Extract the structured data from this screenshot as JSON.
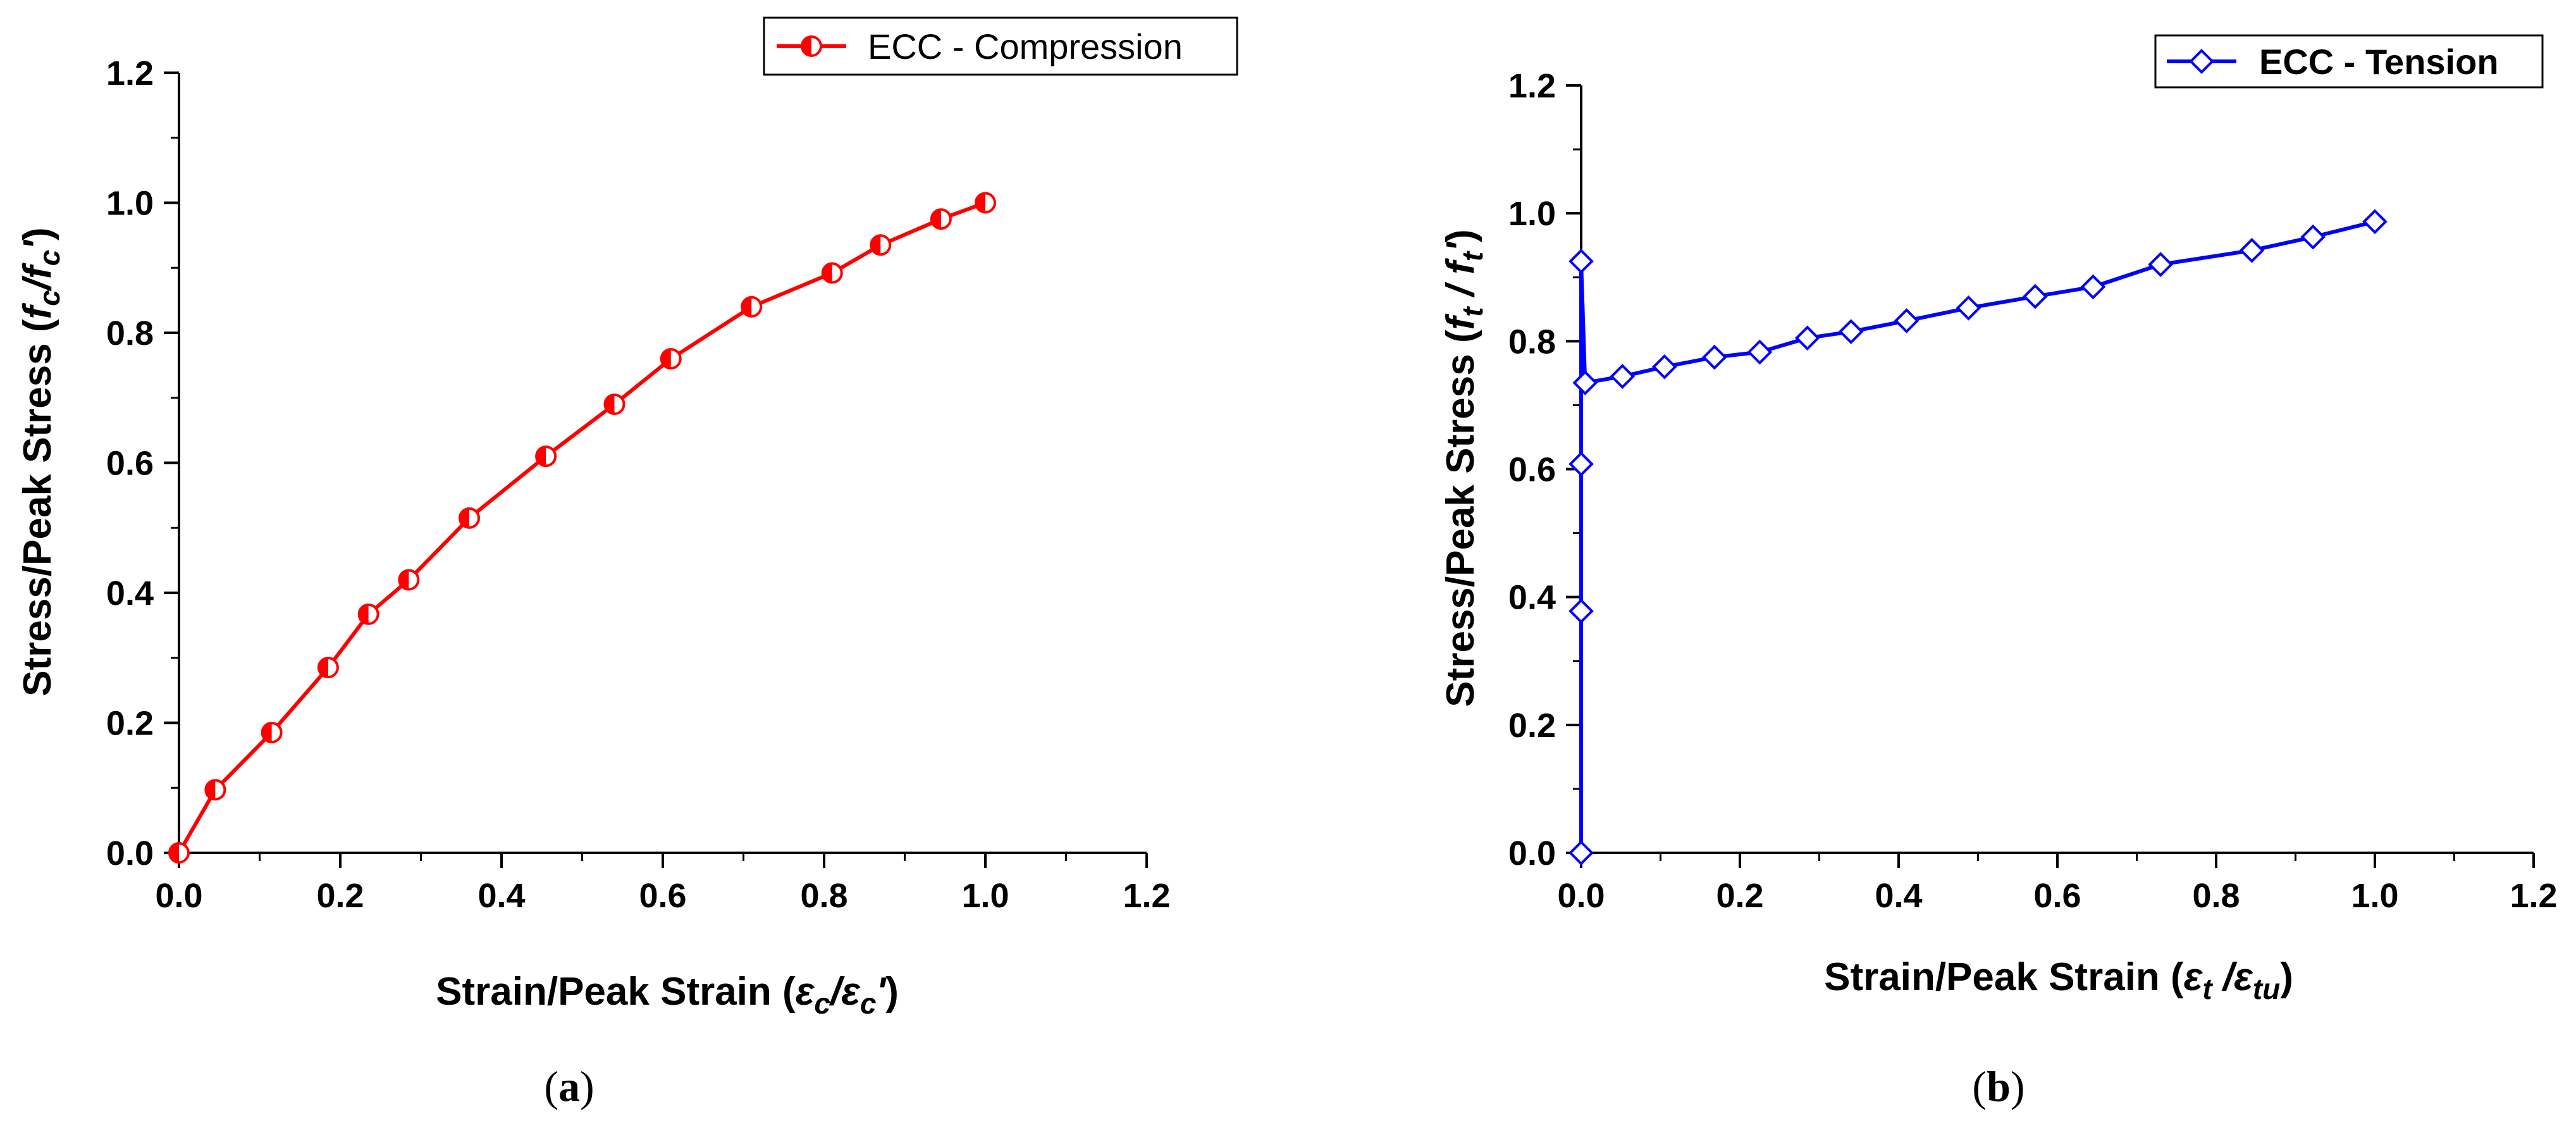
{
  "panels": [
    {
      "caption": "(a)",
      "caption_letter": "a",
      "legend_label": "ECC - Compression",
      "x_axis_label": {
        "prefix": "Strain/Peak Strain (",
        "num": "ε",
        "num_sub": "c",
        "sep": "/",
        "den": "ε",
        "den_sub": "c",
        "den_suffix": "'",
        "close": ")"
      },
      "y_axis_label": {
        "prefix": "Stress/Peak Stress (",
        "num": "f",
        "num_sub": "c",
        "sep": "/",
        "den": "f",
        "den_sub": "c",
        "den_suffix": "'",
        "close": ")"
      }
    },
    {
      "caption": "(b)",
      "caption_letter": "b",
      "legend_label": "ECC - Tension",
      "x_axis_label": {
        "prefix": "Strain/Peak Strain (",
        "num": "ε",
        "num_sub": "t",
        "sep": " /",
        "den": "ε",
        "den_sub": "tu",
        "den_suffix": "",
        "close": ")"
      },
      "y_axis_label": {
        "prefix": "Stress/Peak Stress (",
        "num": "f",
        "num_sub": "t",
        "sep": " / ",
        "den": "f",
        "den_sub": "t",
        "den_suffix": "'",
        "close": ")"
      }
    }
  ],
  "chart_data": [
    {
      "type": "line",
      "xlim": [
        0.0,
        1.2
      ],
      "ylim": [
        0.0,
        1.2
      ],
      "x_ticks": [
        "0.0",
        "0.2",
        "0.4",
        "0.6",
        "0.8",
        "1.0",
        "1.2"
      ],
      "y_ticks": [
        "0.0",
        "0.2",
        "0.4",
        "0.6",
        "0.8",
        "1.0",
        "1.2"
      ],
      "legend_position": "top-right",
      "grid": false,
      "series": [
        {
          "name": "ECC - Compression",
          "color": "#ff0000",
          "marker": "half-filled-circle",
          "x": [
            0.0,
            0.045,
            0.115,
            0.185,
            0.235,
            0.285,
            0.36,
            0.455,
            0.54,
            0.61,
            0.71,
            0.81,
            0.87,
            0.945,
            1.0
          ],
          "y": [
            0.0,
            0.097,
            0.185,
            0.285,
            0.367,
            0.42,
            0.515,
            0.61,
            0.69,
            0.76,
            0.84,
            0.892,
            0.935,
            0.975,
            1.0
          ]
        }
      ]
    },
    {
      "type": "line",
      "xlim": [
        0.0,
        1.2
      ],
      "ylim": [
        0.0,
        1.2
      ],
      "x_ticks": [
        "0.0",
        "0.2",
        "0.4",
        "0.6",
        "0.8",
        "1.0",
        "1.2"
      ],
      "y_ticks": [
        "0.0",
        "0.2",
        "0.4",
        "0.6",
        "0.8",
        "1.0",
        "1.2"
      ],
      "legend_position": "top-right",
      "grid": false,
      "series": [
        {
          "name": "ECC - Tension",
          "color": "#0000ff",
          "marker": "open-diamond",
          "x": [
            0.0,
            0.0,
            0.0,
            0.0,
            0.005,
            0.052,
            0.105,
            0.168,
            0.225,
            0.285,
            0.34,
            0.41,
            0.488,
            0.572,
            0.645,
            0.73,
            0.845,
            0.922,
            1.0
          ],
          "y": [
            0.0,
            0.378,
            0.608,
            0.925,
            0.735,
            0.745,
            0.76,
            0.775,
            0.783,
            0.805,
            0.815,
            0.832,
            0.852,
            0.87,
            0.885,
            0.92,
            0.942,
            0.963,
            0.987
          ]
        }
      ]
    }
  ]
}
